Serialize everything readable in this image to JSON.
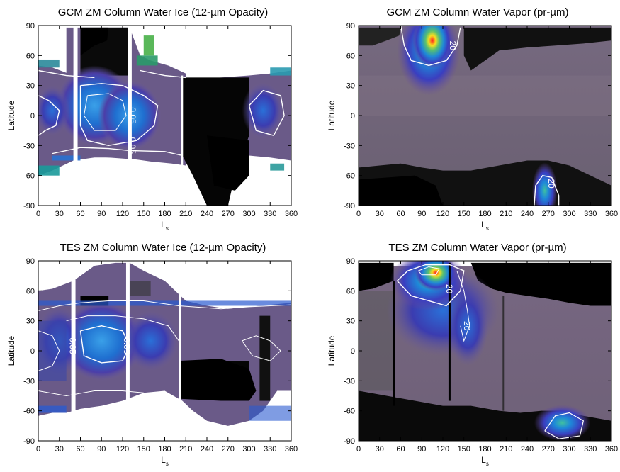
{
  "chart_data": [
    {
      "type": "heatmap",
      "title": "GCM ZM Column Water Ice (12-µm Opacity)",
      "xlabel": "L",
      "xlabel_sub": "s",
      "ylabel": "Latitude",
      "xlim": [
        0,
        360
      ],
      "ylim": [
        -90,
        90
      ],
      "xticks": [
        "0",
        "30",
        "60",
        "90",
        "120",
        "150",
        "180",
        "210",
        "240",
        "270",
        "300",
        "330",
        "360"
      ],
      "yticks": [
        "90",
        "60",
        "30",
        "0",
        "-30",
        "-60",
        "-90"
      ],
      "contour_labels": [
        {
          "text": "0.05",
          "x": 130,
          "y": 0
        },
        {
          "text": "0.05",
          "x": 130,
          "y": -30
        }
      ]
    },
    {
      "type": "heatmap",
      "title": "GCM ZM Column Water Vapor (pr-µm)",
      "xlabel": "L",
      "xlabel_sub": "s",
      "ylabel": "Latitude",
      "xlim": [
        0,
        360
      ],
      "ylim": [
        -90,
        90
      ],
      "xticks": [
        "0",
        "30",
        "60",
        "90",
        "120",
        "150",
        "180",
        "210",
        "240",
        "270",
        "300",
        "330",
        "360"
      ],
      "yticks": [
        "90",
        "60",
        "30",
        "0",
        "-30",
        "-60",
        "-90"
      ],
      "contour_labels": [
        {
          "text": "20",
          "x": 130,
          "y": 70
        },
        {
          "text": "20",
          "x": 270,
          "y": -68
        }
      ]
    },
    {
      "type": "heatmap",
      "title": "TES ZM Column Water Ice (12-µm Opacity)",
      "xlabel": "L",
      "xlabel_sub": "s",
      "ylabel": "Latitude",
      "xlim": [
        0,
        360
      ],
      "ylim": [
        -90,
        90
      ],
      "xticks": [
        "0",
        "30",
        "60",
        "90",
        "120",
        "150",
        "180",
        "210",
        "240",
        "270",
        "300",
        "330",
        "360"
      ],
      "yticks": [
        "90",
        "60",
        "30",
        "0",
        "-30",
        "-60",
        "-90"
      ],
      "contour_labels": [
        {
          "text": "0.05",
          "x": 45,
          "y": 5
        },
        {
          "text": "0.05",
          "x": 122,
          "y": 5
        }
      ]
    },
    {
      "type": "heatmap",
      "title": "TES ZM Column Water Vapor (pr-µm)",
      "xlabel": "L",
      "xlabel_sub": "s",
      "ylabel": "Latitude",
      "xlim": [
        0,
        360
      ],
      "ylim": [
        -90,
        90
      ],
      "xticks": [
        "0",
        "30",
        "60",
        "90",
        "120",
        "150",
        "180",
        "210",
        "240",
        "270",
        "300",
        "330",
        "360"
      ],
      "yticks": [
        "90",
        "60",
        "30",
        "0",
        "-30",
        "-60",
        "-90"
      ],
      "contour_labels": [
        {
          "text": "20",
          "x": 125,
          "y": 62
        },
        {
          "text": "20",
          "x": 150,
          "y": 25
        }
      ]
    }
  ]
}
